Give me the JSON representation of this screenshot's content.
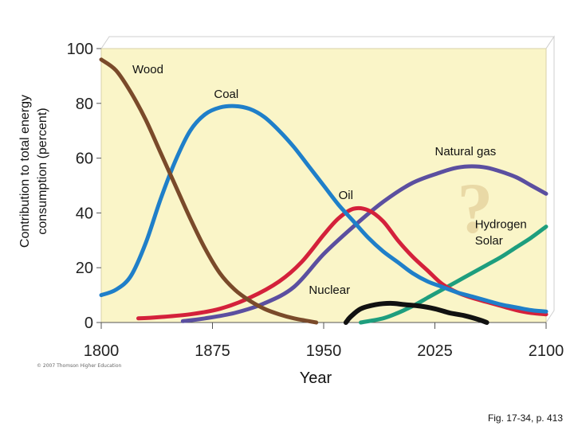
{
  "chart_data": {
    "type": "line",
    "ylabel": "Contribution to total energy consumption (percent)",
    "ylabel_lines": [
      "Contribution to total energy",
      "consumption (percent)"
    ],
    "xlabel": "Year",
    "xlim": [
      1800,
      2100
    ],
    "ylim": [
      0,
      100
    ],
    "xticks": [
      1800,
      1875,
      1950,
      2025,
      2100
    ],
    "yticks": [
      0,
      20,
      40,
      60,
      80,
      100
    ],
    "series": [
      {
        "name": "Wood",
        "color": "#7a4a2a",
        "x": [
          1800,
          1810,
          1820,
          1830,
          1840,
          1850,
          1860,
          1870,
          1880,
          1890,
          1900,
          1910,
          1920,
          1930,
          1940,
          1945
        ],
        "y": [
          96,
          92,
          84,
          74,
          62,
          50,
          38,
          27,
          18,
          12,
          8,
          5,
          3,
          1.5,
          0.5,
          0
        ]
      },
      {
        "name": "Coal",
        "color": "#1f7fc9",
        "x": [
          1800,
          1810,
          1820,
          1830,
          1840,
          1850,
          1860,
          1870,
          1880,
          1890,
          1900,
          1910,
          1920,
          1930,
          1940,
          1950,
          1960,
          1970,
          1980,
          1990,
          2000,
          2010,
          2020,
          2030,
          2040,
          2050,
          2060,
          2070,
          2080,
          2090,
          2100
        ],
        "y": [
          10,
          12,
          17,
          29,
          45,
          59,
          70,
          76,
          78.5,
          79,
          78,
          75,
          70,
          64,
          57,
          50,
          43,
          37,
          31,
          26,
          22,
          18,
          15,
          13,
          11,
          9.5,
          8,
          6.5,
          5.5,
          4.5,
          4
        ]
      },
      {
        "name": "Oil",
        "color": "#d4213b",
        "x": [
          1825,
          1840,
          1860,
          1880,
          1900,
          1920,
          1935,
          1950,
          1960,
          1970,
          1980,
          1990,
          2000,
          2010,
          2020,
          2030,
          2040,
          2050,
          2060,
          2070,
          2080,
          2090,
          2100
        ],
        "y": [
          1.5,
          2,
          3,
          5,
          9,
          15,
          22,
          32,
          38,
          41.5,
          41,
          37,
          30,
          24,
          19,
          14,
          11,
          9,
          7.5,
          6,
          4.5,
          3.5,
          3
        ]
      },
      {
        "name": "Natural gas",
        "color": "#5b4fa0",
        "x": [
          1855,
          1870,
          1890,
          1910,
          1930,
          1950,
          1970,
          1990,
          2010,
          2030,
          2040,
          2050,
          2060,
          2070,
          2080,
          2090,
          2100
        ],
        "y": [
          0.5,
          1.5,
          3.5,
          7,
          13,
          25,
          35,
          44,
          51,
          55,
          56.5,
          57,
          56.5,
          55,
          53,
          50,
          47
        ]
      },
      {
        "name": "Nuclear",
        "color": "#111111",
        "x": [
          1965,
          1968,
          1975,
          1985,
          1995,
          2005,
          2015,
          2025,
          2035,
          2045,
          2055,
          2060
        ],
        "y": [
          0,
          2,
          5,
          6.5,
          7,
          6.5,
          6,
          5,
          3.5,
          2.5,
          1,
          0
        ]
      },
      {
        "name": "Hydrogen Solar",
        "color": "#1e9e7e",
        "x": [
          1975,
          1990,
          2000,
          2010,
          2020,
          2030,
          2040,
          2050,
          2060,
          2070,
          2080,
          2090,
          2100
        ],
        "y": [
          0,
          1.5,
          3.5,
          6,
          9,
          12,
          15,
          18,
          21,
          24,
          27.5,
          31,
          35
        ]
      }
    ],
    "annotations": [
      {
        "text": "Wood",
        "x": 1821,
        "y": 91
      },
      {
        "text": "Coal",
        "x": 1876,
        "y": 82
      },
      {
        "text": "Natural gas",
        "x": 2025,
        "y": 61
      },
      {
        "text": "Oil",
        "x": 1960,
        "y": 45
      },
      {
        "text": "Hydrogen",
        "x": 2052,
        "y": 34.5
      },
      {
        "text": "Solar",
        "x": 2052,
        "y": 28.5
      },
      {
        "text": "Nuclear",
        "x": 1940,
        "y": 10.5
      },
      {
        "text": "?",
        "x": 2040,
        "y": 33
      }
    ],
    "background_color": "#faf5c8"
  },
  "credit": "© 2007 Thomson Higher Education",
  "caption": "Fig. 17-34, p. 413"
}
